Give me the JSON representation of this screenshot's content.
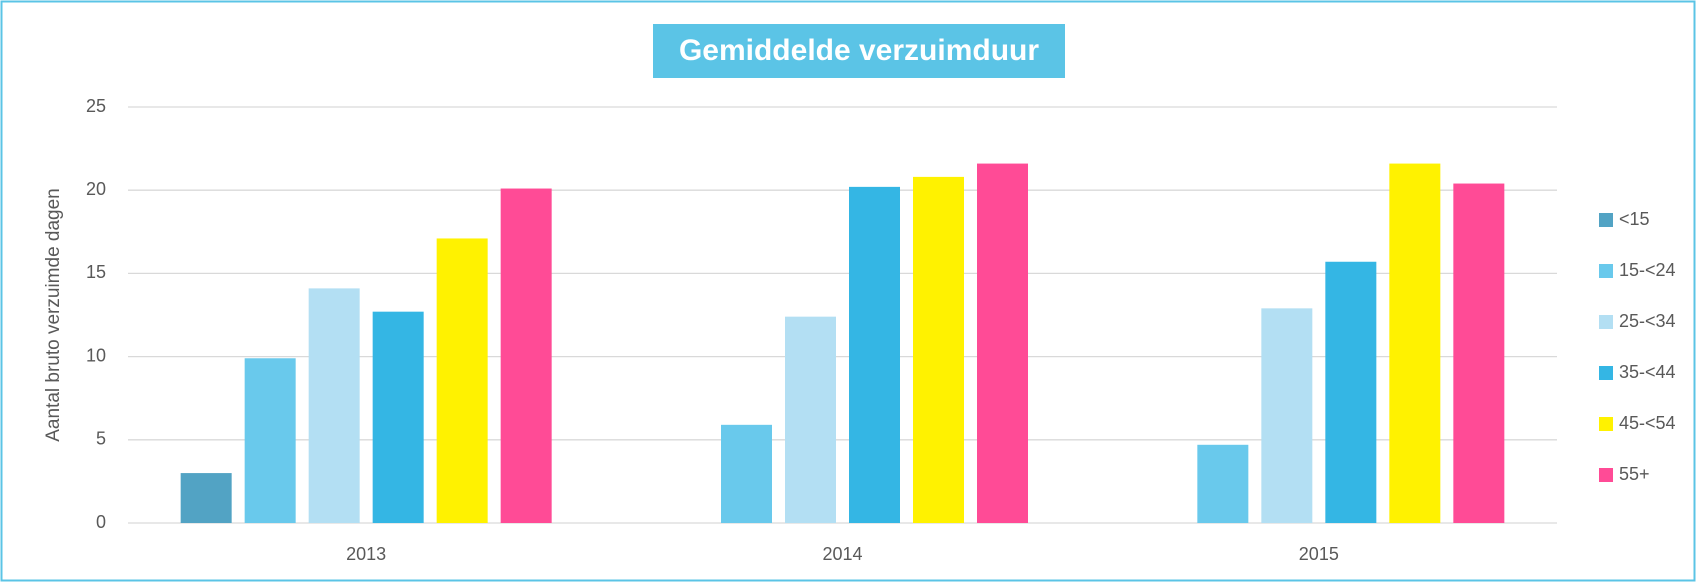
{
  "chart_data": {
    "type": "bar",
    "title": "Gemiddelde verzuimduur",
    "y_label": "Aantal bruto verzuimde dagen",
    "categories": [
      "2013",
      "2014",
      "2015"
    ],
    "series": [
      {
        "name": "<15",
        "color": "#52a3c4",
        "values": [
          3.0,
          null,
          null
        ]
      },
      {
        "name": "15-<24",
        "color": "#69c9ec",
        "values": [
          9.9,
          5.9,
          4.7
        ]
      },
      {
        "name": "25-<34",
        "color": "#b3dff3",
        "values": [
          14.1,
          12.4,
          12.9
        ]
      },
      {
        "name": "35-<44",
        "color": "#34b6e4",
        "values": [
          12.7,
          20.2,
          15.7
        ]
      },
      {
        "name": "45-<54",
        "color": "#fff200",
        "values": [
          17.1,
          20.8,
          21.6
        ]
      },
      {
        "name": "55+",
        "color": "#ff4b96",
        "values": [
          20.1,
          21.6,
          20.4
        ]
      }
    ],
    "ylim": [
      0,
      25
    ],
    "yticks": [
      0,
      5,
      10,
      15,
      20,
      25
    ],
    "grid": true,
    "legend": "right"
  }
}
